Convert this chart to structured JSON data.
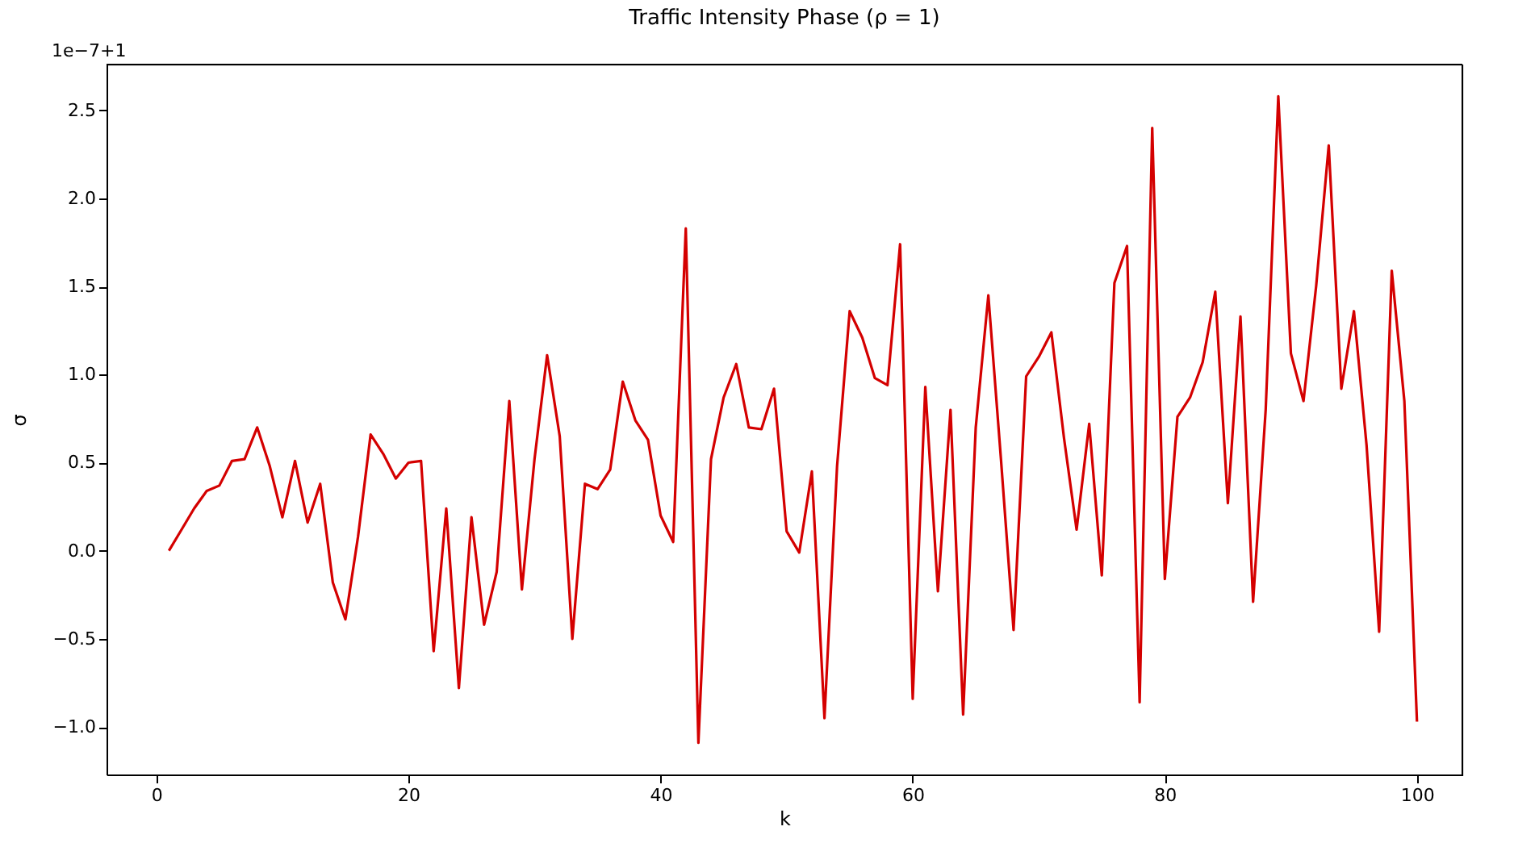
{
  "chart_data": {
    "type": "line",
    "title": "Traffic Intensity Phase (ρ = 1)",
    "xlabel": "k",
    "ylabel": "σ",
    "annotations": [
      "1e−7+1"
    ],
    "x": [
      1,
      2,
      3,
      4,
      5,
      6,
      7,
      8,
      9,
      10,
      11,
      12,
      13,
      14,
      15,
      16,
      17,
      18,
      19,
      20,
      21,
      22,
      23,
      24,
      25,
      26,
      27,
      28,
      29,
      30,
      31,
      32,
      33,
      34,
      35,
      36,
      37,
      38,
      39,
      40,
      41,
      42,
      43,
      44,
      45,
      46,
      47,
      48,
      49,
      50,
      51,
      52,
      53,
      54,
      55,
      56,
      57,
      58,
      59,
      60,
      61,
      62,
      63,
      64,
      65,
      66,
      67,
      68,
      69,
      70,
      71,
      72,
      73,
      74,
      75,
      76,
      77,
      78,
      79,
      80,
      81,
      82,
      83,
      84,
      85,
      86,
      87,
      88,
      89,
      90,
      91,
      92,
      93,
      94,
      95,
      96,
      97,
      98,
      99,
      100
    ],
    "series": [
      {
        "color": "#d40000",
        "values": [
          0.0,
          0.12,
          0.24,
          0.34,
          0.37,
          0.51,
          0.52,
          0.7,
          0.48,
          0.19,
          0.51,
          0.16,
          0.38,
          -0.18,
          -0.39,
          0.08,
          0.66,
          0.55,
          0.41,
          0.5,
          0.51,
          -0.57,
          0.24,
          -0.78,
          0.19,
          -0.42,
          -0.12,
          0.85,
          -0.22,
          0.52,
          1.11,
          0.65,
          -0.5,
          0.38,
          0.35,
          0.46,
          0.96,
          0.74,
          0.63,
          0.2,
          0.05,
          1.83,
          -1.09,
          0.52,
          0.87,
          1.06,
          0.7,
          0.69,
          0.92,
          0.11,
          -0.01,
          0.45,
          -0.95,
          0.48,
          1.36,
          1.21,
          0.98,
          0.94,
          1.74,
          -0.84,
          0.93,
          -0.23,
          0.8,
          -0.93,
          0.7,
          1.45,
          0.52,
          -0.45,
          0.99,
          1.1,
          1.24,
          0.64,
          0.12,
          0.72,
          -0.14,
          1.52,
          1.73,
          -0.86,
          2.4,
          -0.16,
          0.76,
          0.87,
          1.07,
          1.47,
          0.27,
          1.33,
          -0.29,
          0.8,
          2.58,
          1.12,
          0.85,
          1.5,
          2.3,
          0.92,
          1.36,
          0.6,
          -0.46,
          1.59,
          0.85,
          -0.97
        ]
      }
    ],
    "xlim": [
      -3.95,
      103.6
    ],
    "xticks": [
      0,
      20,
      40,
      60,
      80,
      100
    ],
    "ylim": [
      -1.27,
      2.76
    ],
    "yticks": [
      {
        "value": -1.0,
        "label": "−1.0"
      },
      {
        "value": -0.5,
        "label": "−0.5"
      },
      {
        "value": 0.0,
        "label": "0.0"
      },
      {
        "value": 0.5,
        "label": "0.5"
      },
      {
        "value": 1.0,
        "label": "1.0"
      },
      {
        "value": 1.5,
        "label": "1.5"
      },
      {
        "value": 2.0,
        "label": "2.0"
      },
      {
        "value": 2.5,
        "label": "2.5"
      }
    ],
    "grid": false,
    "line_style": "solid",
    "marker": "none"
  }
}
